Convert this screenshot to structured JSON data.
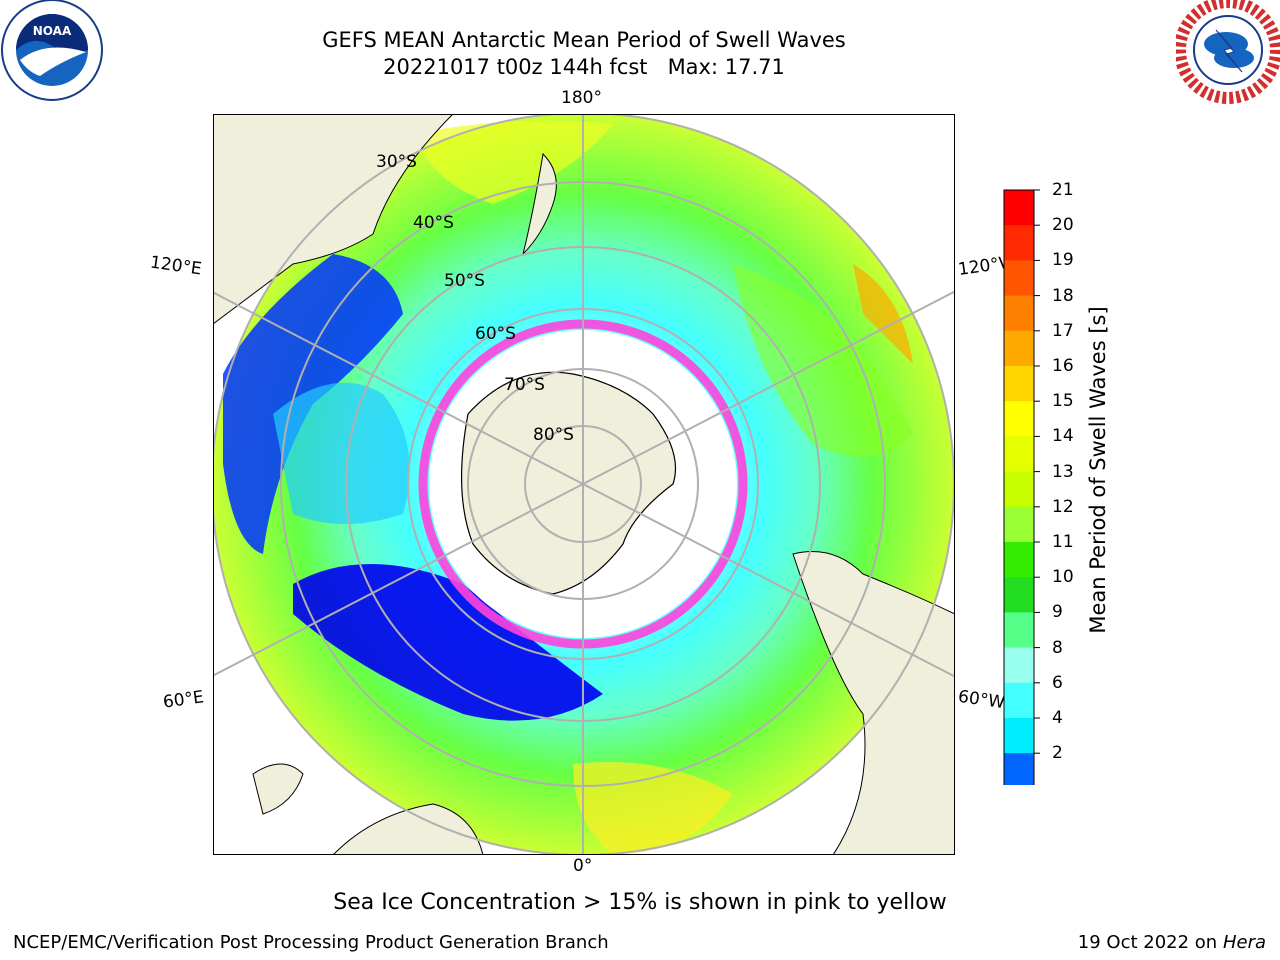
{
  "header": {
    "title_line1": "GEFS MEAN Antarctic Mean Period of Swell Waves",
    "title_line2": "20221017 t00z 144h fcst   Max: 17.71"
  },
  "logos": {
    "left": "noaa-logo",
    "right": "nws-logo"
  },
  "map": {
    "projection": "south-polar-stereographic",
    "lon_labels": {
      "top": "180°",
      "bottom": "0°",
      "left_upper": "120°E",
      "left_lower": "60°E",
      "right_upper": "120°W",
      "right_lower": "60°W"
    },
    "lat_labels": [
      "30°S",
      "40°S",
      "50°S",
      "60°S",
      "70°S",
      "80°S"
    ]
  },
  "colorbar": {
    "label": "Mean Period of Swell Waves [s]",
    "ticks": [
      "21",
      "20",
      "19",
      "18",
      "17",
      "16",
      "15",
      "14",
      "13",
      "12",
      "11",
      "10",
      "9",
      "8",
      "6",
      "4",
      "2"
    ],
    "colors": [
      "#ff0000",
      "#ff2a00",
      "#ff5500",
      "#ff8000",
      "#ffaa00",
      "#ffd500",
      "#ffff00",
      "#e6ff00",
      "#c8ff00",
      "#99ff33",
      "#33ee00",
      "#22dd22",
      "#55ff88",
      "#99ffee",
      "#44ffff",
      "#00eeff",
      "#0066ff"
    ],
    "extend_color": "#0000ee"
  },
  "footer": {
    "note": "Sea Ice Concentration > 15% is shown in pink to yellow",
    "credit": "NCEP/EMC/Verification Post Processing Product Generation Branch",
    "date_prefix": "19 Oct 2022 on ",
    "date_machine": "Hera"
  }
}
